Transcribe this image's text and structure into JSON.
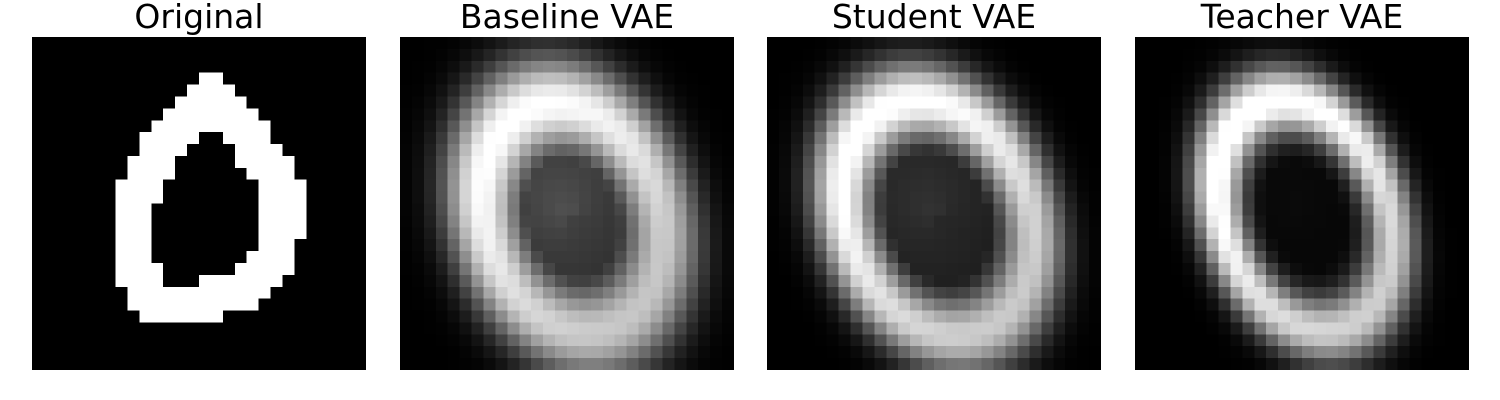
{
  "panels": [
    {
      "title": "Original",
      "image": "binary-digit-zero"
    },
    {
      "title": "Baseline VAE",
      "image": "blurry-digit-zero-reconstruction"
    },
    {
      "title": "Student VAE",
      "image": "digit-zero-reconstruction"
    },
    {
      "title": "Teacher VAE",
      "image": "sharp-digit-zero-reconstruction"
    }
  ],
  "colors": {
    "background": "#000000",
    "stroke": "#ffffff"
  }
}
